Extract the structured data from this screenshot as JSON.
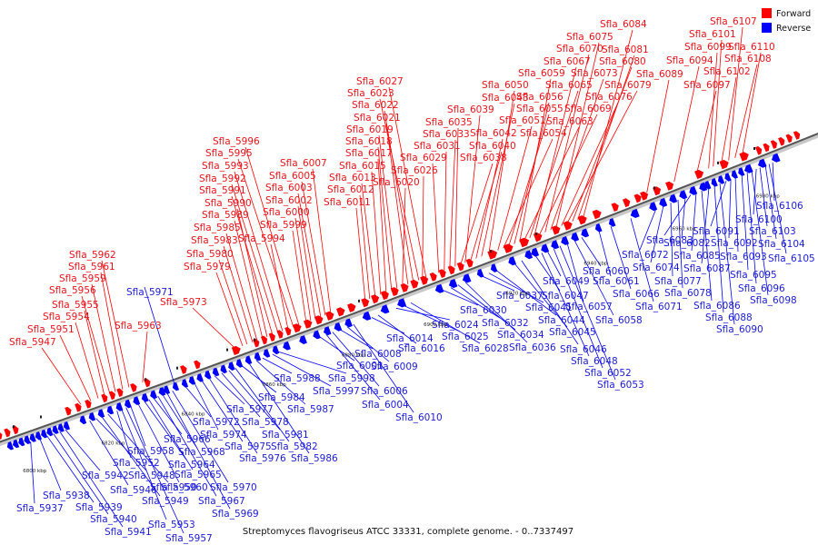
{
  "legend": {
    "forward": {
      "label": "Forward",
      "color": "#ff0000"
    },
    "reverse": {
      "label": "Reverse",
      "color": "#0000ff"
    }
  },
  "caption": "Streptomyces flavogriseus ATCC 33331, complete genome. - 0..7337497",
  "ticks": [
    "6800 kbp",
    "6820 kbp",
    "6840 kbp",
    "6860 kbp",
    "6880 kbp",
    "6900 kbp",
    "6920 kbp",
    "6940 kbp",
    "6960 kbp",
    "6980 kbp"
  ],
  "forward_genes": [
    "Sfla_5947",
    "Sfla_5951",
    "Sfla_5954",
    "Sfla_5955",
    "Sfla_5956",
    "Sfla_5959",
    "Sfla_5961",
    "Sfla_5962",
    "Sfla_5963",
    "Sfla_5973",
    "Sfla_5979",
    "Sfla_5980",
    "Sfla_5983",
    "Sfla_5985",
    "Sfla_5989",
    "Sfla_5990",
    "Sfla_5991",
    "Sfla_5992",
    "Sfla_5993",
    "Sfla_5994",
    "Sfla_5995",
    "Sfla_5996",
    "Sfla_5999",
    "Sfla_6000",
    "Sfla_6002",
    "Sfla_6003",
    "Sfla_6005",
    "Sfla_6007",
    "Sfla_6011",
    "Sfla_6012",
    "Sfla_6013",
    "Sfla_6015",
    "Sfla_6017",
    "Sfla_6018",
    "Sfla_6019",
    "Sfla_6020",
    "Sfla_6021",
    "Sfla_6022",
    "Sfla_6023",
    "Sfla_6026",
    "Sfla_6027",
    "Sfla_6029",
    "Sfla_6031",
    "Sfla_6033",
    "Sfla_6035",
    "Sfla_6038",
    "Sfla_6039",
    "Sfla_6040",
    "Sfla_6042",
    "Sfla_6043",
    "Sfla_6050",
    "Sfla_6051",
    "Sfla_6054",
    "Sfla_6055",
    "Sfla_6056",
    "Sfla_6059",
    "Sfla_6063",
    "Sfla_6065",
    "Sfla_6067",
    "Sfla_6069",
    "Sfla_6070",
    "Sfla_6073",
    "Sfla_6075",
    "Sfla_6076",
    "Sfla_6079",
    "Sfla_6080",
    "Sfla_6081",
    "Sfla_6084",
    "Sfla_6089",
    "Sfla_6094",
    "Sfla_6097",
    "Sfla_6099",
    "Sfla_6101",
    "Sfla_6102",
    "Sfla_6107",
    "Sfla_6108",
    "Sfla_6110"
  ],
  "reverse_genes": [
    "Sfla_5937",
    "Sfla_5938",
    "Sfla_5939",
    "Sfla_5940",
    "Sfla_5941",
    "Sfla_5942",
    "Sfla_5946",
    "Sfla_5948",
    "Sfla_5949",
    "Sfla_5950",
    "Sfla_5952",
    "Sfla_5953",
    "Sfla_5957",
    "Sfla_5958",
    "Sfla_5960",
    "Sfla_5964",
    "Sfla_5965",
    "Sfla_5966",
    "Sfla_5967",
    "Sfla_5968",
    "Sfla_5969",
    "Sfla_5970",
    "Sfla_5971",
    "Sfla_5972",
    "Sfla_5974",
    "Sfla_5975",
    "Sfla_5976",
    "Sfla_5977",
    "Sfla_5978",
    "Sfla_5981",
    "Sfla_5982",
    "Sfla_5984",
    "Sfla_5986",
    "Sfla_5987",
    "Sfla_5988",
    "Sfla_5997",
    "Sfla_5998",
    "Sfla_6001",
    "Sfla_6004",
    "Sfla_6006",
    "Sfla_6008",
    "Sfla_6009",
    "Sfla_6010",
    "Sfla_6014",
    "Sfla_6016",
    "Sfla_6024",
    "Sfla_6025",
    "Sfla_6028",
    "Sfla_6030",
    "Sfla_6032",
    "Sfla_6034",
    "Sfla_6036",
    "Sfla_6037",
    "Sfla_6041",
    "Sfla_6044",
    "Sfla_6045",
    "Sfla_6046",
    "Sfla_6047",
    "Sfla_6048",
    "Sfla_6049",
    "Sfla_6052",
    "Sfla_6053",
    "Sfla_6057",
    "Sfla_6058",
    "Sfla_6060",
    "Sfla_6061",
    "Sfla_6066",
    "Sfla_6071",
    "Sfla_6072",
    "Sfla_6074",
    "Sfla_6077",
    "Sfla_6078",
    "Sfla_6082",
    "Sfla_6083",
    "Sfla_6085",
    "Sfla_6086",
    "Sfla_6087",
    "Sfla_6088",
    "Sfla_6090",
    "Sfla_6091",
    "Sfla_6092",
    "Sfla_6093",
    "Sfla_6095",
    "Sfla_6096",
    "Sfla_6098",
    "Sfla_6100",
    "Sfla_6103",
    "Sfla_6104",
    "Sfla_6105",
    "Sfla_6106"
  ]
}
